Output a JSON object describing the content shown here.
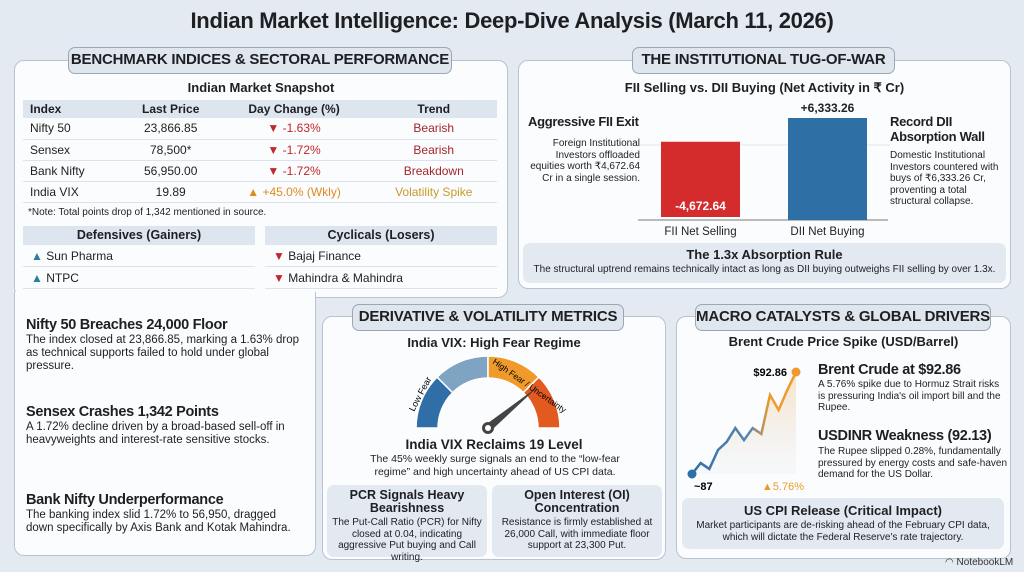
{
  "title": "Indian Market Intelligence: Deep-Dive Analysis (March 11, 2026)",
  "benchmark": {
    "tab": "BENCHMARK INDICES & SECTORAL PERFORMANCE",
    "snapshot_title": "Indian Market Snapshot",
    "columns": [
      "Index",
      "Last Price",
      "Day Change (%)",
      "Trend"
    ],
    "rows": [
      {
        "index": "Nifty 50",
        "price": "23,866.85",
        "change": "-1.63%",
        "dir": "down",
        "trend": "Bearish"
      },
      {
        "index": "Sensex",
        "price": "78,500*",
        "change": "-1.72%",
        "dir": "down",
        "trend": "Bearish"
      },
      {
        "index": "Bank Nifty",
        "price": "56,950.00",
        "change": "-1.72%",
        "dir": "down",
        "trend": "Breakdown"
      },
      {
        "index": "India VIX",
        "price": "19.89",
        "change": "+45.0% (Wkly)",
        "dir": "up",
        "trend": "Volatility Spike"
      }
    ],
    "note": "*Note: Total points drop of 1,342 mentioned in source.",
    "defensives": {
      "title": "Defensives (Gainers)",
      "items": [
        "Sun Pharma",
        "NTPC"
      ]
    },
    "cyclicals": {
      "title": "Cyclicals (Losers)",
      "items": [
        "Bajaj Finance",
        "Mahindra & Mahindra"
      ]
    }
  },
  "highlights": [
    {
      "title": "Nifty 50 Breaches 24,000 Floor",
      "text": "The index closed at 23,866.85, marking a 1.63% drop as technical supports failed to hold under global pressure."
    },
    {
      "title": "Sensex Crashes 1,342 Points",
      "text": "A 1.72% decline driven by a broad-based sell-off in heavyweights and interest-rate sensitive stocks."
    },
    {
      "title": "Bank Nifty Underperformance",
      "text": "The banking index slid 1.72% to 56,950, dragged down specifically by Axis Bank and Kotak Mahindra."
    }
  ],
  "institutional": {
    "tab": "THE INSTITUTIONAL TUG-OF-WAR",
    "left_title": "Aggressive FII Exit",
    "left_text": "Foreign Institutional Investors offloaded equities worth ₹4,672.64 Cr in a single session.",
    "right_title": "Record DII Absorption Wall",
    "right_text": "Domestic Institutional Investors countered with buys of ₹6,333.26 Cr, proventing a total structural collapse.",
    "rule_title": "The 1.3x Absorption Rule",
    "rule_text": "The structural uptrend remains technically intact as long as DII buying outweighs FII selling by over 1.3x."
  },
  "derivatives": {
    "tab": "DERIVATIVE & VOLATILITY METRICS",
    "gauge_title": "India VIX: High Fear Regime",
    "gauge_low": "Low Fear",
    "gauge_high": "High Fear / Uncertainty",
    "gauge_level": 0.78,
    "vix_title": "India VIX Reclaims 19 Level",
    "vix_text": "The 45% weekly surge signals an end to the “low-fear regime” and high uncertainty ahead of US CPI data.",
    "pcr_title": "PCR Signals Heavy Bearishness",
    "pcr_text": "The Put-Call Ratio (PCR) for Nifty closed at 0.04, indicating aggressive Put buying and Call writing.",
    "oi_title": "Open Interest (OI) Concentration",
    "oi_text": "Resistance is firmly established at 26,000 Call, with immediate floor support at 23,300 Put."
  },
  "macro": {
    "tab": "MACRO CATALYSTS & GLOBAL DRIVERS",
    "brent_title": "Brent Crude at $92.86",
    "brent_text": "A 5.76% spike due to Hormuz Strait risks is pressuring India's oil import bill and the Rupee.",
    "inr_title": "USDINR Weakness (92.13)",
    "inr_text": "The Rupee slipped 0.28%, fundamentally pressured by energy costs and safe-haven demand for the US Dollar.",
    "cpi_title": "US CPI Release (Critical Impact)",
    "cpi_text": "Market participants are de-risking ahead of the February CPI data, which will dictate the Federal Reserve's rate trajectory."
  },
  "watermark": "NotebookLM",
  "colors": {
    "sell": "#d42c2c",
    "buy": "#2e6fa6",
    "orange": "#ef9a2a",
    "red_orange": "#e25a1f",
    "light_blue": "#7fa3c3"
  },
  "chart_data": [
    {
      "type": "bar",
      "title": "FII Selling vs. DII Buying (Net Activity in ₹ Cr)",
      "categories": [
        "FII Net Selling",
        "DII Net Buying"
      ],
      "values": [
        -4672.64,
        6333.26
      ],
      "data_labels": [
        "-4,672.64",
        "+6,333.26"
      ]
    },
    {
      "type": "line",
      "title": "Brent Crude Price Spike (USD/Barrel)",
      "values": [
        87,
        87.63,
        87.29,
        88.38,
        88.84,
        89.64,
        88.95,
        89.64,
        89.3,
        91.54,
        90.68,
        91.83,
        92.86
      ],
      "start_label": "~87",
      "end_label": "$92.86",
      "change_label": "5.76%"
    }
  ]
}
